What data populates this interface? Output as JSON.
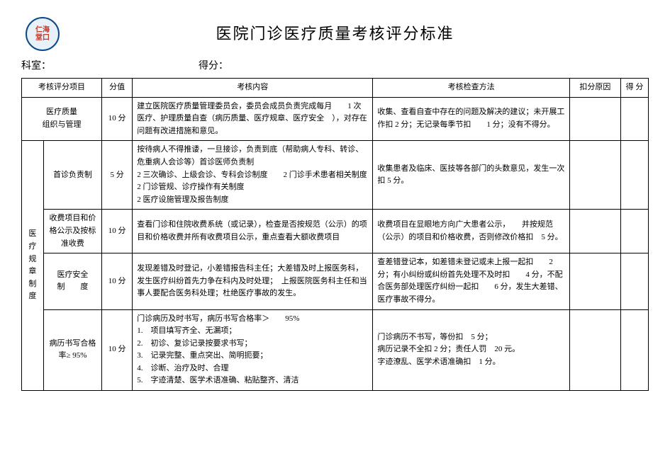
{
  "header": {
    "logo_text": "仁海\n堂口",
    "main_title": "医院门诊医疗质量考核评分标准"
  },
  "subheader": {
    "dept_label": "科室：",
    "score_label": "得分："
  },
  "columns": {
    "project": "考核评分项目",
    "score": "分值",
    "content": "考核内容",
    "method": "考核检查方法",
    "reason": "扣分原因",
    "result": "得 分"
  },
  "rows": {
    "r1": {
      "project": "医疗质量\n组织与管理",
      "score": "10 分",
      "content": "建立医院医疗质量管理委员会，委员会成员负责完成每月　　1 次医疗、护理质量自查（病历质量、医疗规章、医疗安全　），对存在问题有改进措施和意见。",
      "method": "收集、查看自查中存在的问题及解决的建议；未开展工作扣 2 分；无记录每季节扣　　1 分；没有不得分。"
    },
    "r2_group": "医疗\n规章\n制度",
    "r2": {
      "subproject": "首诊负责制",
      "score": "5 分",
      "content": "按待病人不得推诿，一旦接诊，负责到底（帮助病人专科、转诊、危重病人会诊等）首诊医师负责制\n2 三次确诊、上级会诊、专科会诊制度　　2 门诊手术患者相关制度　2 门诊管规、诊疗操作有关制度\n2 医疗设施管理及报告制度",
      "method": "收集患者及临床、医技等各部门的头数意见，发生一次扣 5 分。"
    },
    "r3": {
      "subproject": "收费项目和价格公示及按标准收费",
      "score": "10 分",
      "content": "查看门诊和住院收费系统（或记录），检查是否按规范（公示）的项目和价格收费并所有收费项目公示，重点查看大额收费项目",
      "method": "收费项目在显眼地方向广大患者公示，　　并按规范（公示）的项目和价格收费，否则修改价格扣　5 分。"
    },
    "r4": {
      "subproject": "医疗安全\n制　　度",
      "score": "10 分",
      "content": "发现差错及时登记，小差错报告科主任；大差错及时上报医务科，发生医疗纠纷首先力争在科内及时处理；　上报医院医务科主任和当事人要配合医务科处理；杜绝医疗事故的发生。",
      "method": "查差错登记本，如差错未登记或未上报一起扣　　2 分；有小纠纷或纠纷首先处理不及时扣　　4 分，不配合医务部处理医疗纠纷一起扣　　6 分，发生大差错、医疗事故不得分。"
    },
    "r5": {
      "subproject": "病历书写合格率≥ 95%",
      "score": "10 分",
      "content": "门诊病历及时书写，病历书写合格率＞　　95%\n1.　项目填写齐全、无漏项；\n2.　初诊、复诊记录按要求书写；\n3.　记录完整、重点突出、简明扼要；\n4.　诊断、治疗及时、合理\n5.　字迹清楚、医学术语准确、粘贴整齐、清洁",
      "method": "门诊病历不书写，等份扣　5 分；\n病历记录不全扣 2 分；责任人罚　20 元。\n字迹潦乱、医学术语准确扣　1 分。"
    }
  }
}
